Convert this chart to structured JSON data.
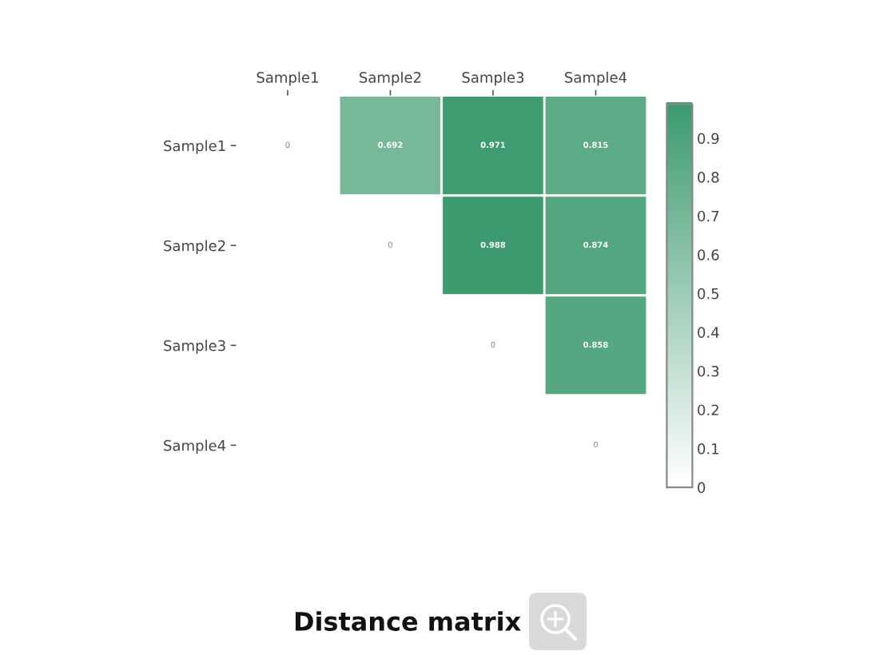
{
  "chart_data": {
    "type": "heatmap",
    "title": "Distance matrix",
    "categories": [
      "Sample1",
      "Sample2",
      "Sample3",
      "Sample4"
    ],
    "y_categories": [
      "Sample1",
      "Sample2",
      "Sample3",
      "Sample4"
    ],
    "cells": [
      [
        0,
        0.692,
        0.971,
        0.815
      ],
      [
        null,
        0,
        0.988,
        0.874
      ],
      [
        null,
        null,
        0,
        0.858
      ],
      [
        null,
        null,
        null,
        0
      ]
    ],
    "data_labels": true,
    "clim": [
      0,
      0.988
    ],
    "cticks": [
      0,
      0.1,
      0.2,
      0.3,
      0.4,
      0.5,
      0.6,
      0.7,
      0.8,
      0.9
    ],
    "color": "#3c9a6e"
  }
}
